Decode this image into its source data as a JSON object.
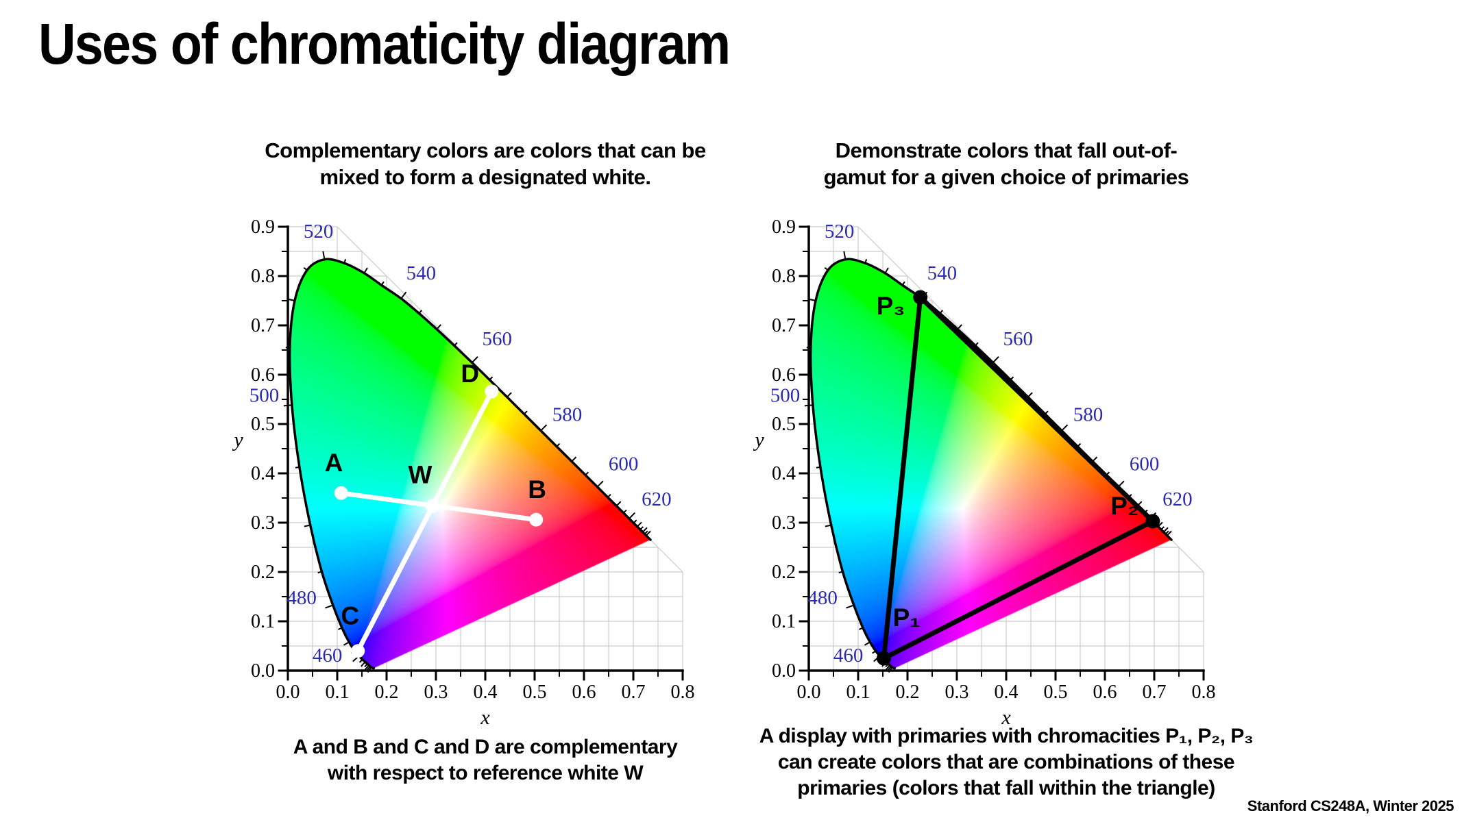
{
  "slide": {
    "title": "Uses of chromaticity diagram",
    "footer": "Stanford CS248A, Winter 2025"
  },
  "panels": [
    {
      "heading_lines": [
        "Complementary colors are colors that can be",
        "mixed to form a designated white."
      ],
      "caption_lines": [
        "A and B and C and D are complementary",
        "with respect to reference white W"
      ]
    },
    {
      "heading_lines": [
        "Demonstrate colors that fall out-of-",
        "gamut for a given choice of primaries"
      ],
      "caption_lines": [
        "A display with primaries with chromacities P₁, P₂, P₃",
        "can create colors that are combinations of these",
        "primaries (colors that fall within the triangle)"
      ]
    }
  ],
  "colors": {
    "wavelength_label": "#2a2ab4",
    "grid": "#cccccc",
    "axis": "#000000",
    "locus_outline": "#000000",
    "left_annotation": "#ffffff",
    "right_annotation": "#000000",
    "point_label": "#000000"
  },
  "spectral_locus": [
    [
      380,
      0.1741,
      0.005
    ],
    [
      410,
      0.1726,
      0.0048
    ],
    [
      430,
      0.1689,
      0.0069
    ],
    [
      435,
      0.1669,
      0.0086
    ],
    [
      440,
      0.1644,
      0.0109
    ],
    [
      445,
      0.1611,
      0.0138
    ],
    [
      450,
      0.1566,
      0.0177
    ],
    [
      455,
      0.151,
      0.0227
    ],
    [
      460,
      0.144,
      0.0297
    ],
    [
      465,
      0.1355,
      0.0399
    ],
    [
      470,
      0.1241,
      0.0578
    ],
    [
      475,
      0.1096,
      0.0868
    ],
    [
      480,
      0.0913,
      0.1327
    ],
    [
      485,
      0.0687,
      0.2007
    ],
    [
      490,
      0.0454,
      0.295
    ],
    [
      495,
      0.0235,
      0.4127
    ],
    [
      500,
      0.0082,
      0.5384
    ],
    [
      505,
      0.0039,
      0.6548
    ],
    [
      510,
      0.0139,
      0.7502
    ],
    [
      515,
      0.0389,
      0.812
    ],
    [
      520,
      0.0743,
      0.8338
    ],
    [
      525,
      0.1142,
      0.8262
    ],
    [
      530,
      0.1547,
      0.8059
    ],
    [
      535,
      0.1896,
      0.7816
    ],
    [
      540,
      0.2296,
      0.7543
    ],
    [
      545,
      0.2658,
      0.7243
    ],
    [
      550,
      0.3016,
      0.6923
    ],
    [
      555,
      0.3373,
      0.6589
    ],
    [
      560,
      0.3731,
      0.6245
    ],
    [
      565,
      0.4087,
      0.5896
    ],
    [
      570,
      0.4441,
      0.5547
    ],
    [
      575,
      0.4788,
      0.5202
    ],
    [
      580,
      0.5125,
      0.4866
    ],
    [
      585,
      0.5448,
      0.4544
    ],
    [
      590,
      0.5752,
      0.4242
    ],
    [
      595,
      0.6029,
      0.3965
    ],
    [
      600,
      0.627,
      0.3725
    ],
    [
      605,
      0.6482,
      0.3514
    ],
    [
      610,
      0.6658,
      0.334
    ],
    [
      615,
      0.6801,
      0.3197
    ],
    [
      620,
      0.6915,
      0.3083
    ],
    [
      625,
      0.7006,
      0.2993
    ],
    [
      630,
      0.7079,
      0.292
    ],
    [
      635,
      0.714,
      0.2859
    ],
    [
      640,
      0.719,
      0.2809
    ],
    [
      645,
      0.723,
      0.277
    ],
    [
      650,
      0.726,
      0.274
    ],
    [
      700,
      0.7347,
      0.2653
    ]
  ],
  "chart_data": [
    {
      "type": "scatter",
      "subtype": "cie-1931-chromaticity",
      "title": "Complementary colors are colors that can be mixed to form a designated white.",
      "xlabel": "x",
      "ylabel": "y",
      "xlim": [
        0,
        0.8
      ],
      "ylim": [
        0,
        0.9
      ],
      "x_tick_labels": [
        "0.0",
        "0.1",
        "0.2",
        "0.3",
        "0.4",
        "0.5",
        "0.6",
        "0.7",
        "0.8"
      ],
      "y_tick_labels": [
        "0.0",
        "0.1",
        "0.2",
        "0.3",
        "0.4",
        "0.5",
        "0.6",
        "0.7",
        "0.8",
        "0.9"
      ],
      "grid": true,
      "grid_step": 0.05,
      "wavelength_labels": [
        {
          "wl": 460,
          "pos": [
            0.08,
            0.018
          ]
        },
        {
          "wl": 480,
          "pos": [
            0.028,
            0.135
          ]
        },
        {
          "wl": 500,
          "pos": [
            -0.048,
            0.545
          ]
        },
        {
          "wl": 520,
          "pos": [
            0.062,
            0.878
          ]
        },
        {
          "wl": 540,
          "pos": [
            0.27,
            0.793
          ]
        },
        {
          "wl": 560,
          "pos": [
            0.424,
            0.66
          ]
        },
        {
          "wl": 580,
          "pos": [
            0.566,
            0.506
          ]
        },
        {
          "wl": 600,
          "pos": [
            0.68,
            0.406
          ]
        },
        {
          "wl": 620,
          "pos": [
            0.747,
            0.335
          ]
        }
      ],
      "points": [
        {
          "name": "A",
          "label": "A",
          "x": 0.108,
          "y": 0.36,
          "label_pos": [
            0.093,
            0.404
          ]
        },
        {
          "name": "W",
          "label": "W",
          "x": 0.293,
          "y": 0.334,
          "label_pos": [
            0.268,
            0.38
          ]
        },
        {
          "name": "B",
          "label": "B",
          "x": 0.503,
          "y": 0.306,
          "label_pos": [
            0.505,
            0.35
          ]
        },
        {
          "name": "C",
          "label": "C",
          "x": 0.142,
          "y": 0.04,
          "label_pos": [
            0.126,
            0.094
          ]
        },
        {
          "name": "D",
          "label": "D",
          "x": 0.413,
          "y": 0.566,
          "label_pos": [
            0.369,
            0.585
          ]
        }
      ],
      "segments": [
        [
          "A",
          "B"
        ],
        [
          "C",
          "D"
        ]
      ],
      "marker": {
        "fill": "#ffffff",
        "r": 10
      },
      "line": {
        "color": "#ffffff",
        "width": 7
      }
    },
    {
      "type": "scatter",
      "subtype": "cie-1931-chromaticity",
      "title": "Demonstrate colors that fall out-of-gamut for a given choice of primaries",
      "xlabel": "x",
      "ylabel": "y",
      "xlim": [
        0,
        0.8
      ],
      "ylim": [
        0,
        0.9
      ],
      "x_tick_labels": [
        "0.0",
        "0.1",
        "0.2",
        "0.3",
        "0.4",
        "0.5",
        "0.6",
        "0.7",
        "0.8"
      ],
      "y_tick_labels": [
        "0.0",
        "0.1",
        "0.2",
        "0.3",
        "0.4",
        "0.5",
        "0.6",
        "0.7",
        "0.8",
        "0.9"
      ],
      "grid": true,
      "grid_step": 0.05,
      "wavelength_labels": [
        {
          "wl": 460,
          "pos": [
            0.08,
            0.018
          ]
        },
        {
          "wl": 480,
          "pos": [
            0.028,
            0.135
          ]
        },
        {
          "wl": 500,
          "pos": [
            -0.048,
            0.545
          ]
        },
        {
          "wl": 520,
          "pos": [
            0.062,
            0.878
          ]
        },
        {
          "wl": 540,
          "pos": [
            0.27,
            0.793
          ]
        },
        {
          "wl": 560,
          "pos": [
            0.424,
            0.66
          ]
        },
        {
          "wl": 580,
          "pos": [
            0.566,
            0.506
          ]
        },
        {
          "wl": 600,
          "pos": [
            0.68,
            0.406
          ]
        },
        {
          "wl": 620,
          "pos": [
            0.747,
            0.335
          ]
        }
      ],
      "points": [
        {
          "name": "P1",
          "label": "P₁",
          "x": 0.152,
          "y": 0.025,
          "label_pos": [
            0.198,
            0.09
          ]
        },
        {
          "name": "P2",
          "label": "P₂",
          "x": 0.697,
          "y": 0.303,
          "label_pos": [
            0.64,
            0.317
          ]
        },
        {
          "name": "P3",
          "label": "P₃",
          "x": 0.226,
          "y": 0.757,
          "label_pos": [
            0.166,
            0.722
          ]
        }
      ],
      "segments": [
        [
          "P1",
          "P2"
        ],
        [
          "P2",
          "P3"
        ],
        [
          "P3",
          "P1"
        ]
      ],
      "marker": {
        "fill": "#000000",
        "r": 10.5
      },
      "line": {
        "color": "#000000",
        "width": 7
      }
    }
  ]
}
